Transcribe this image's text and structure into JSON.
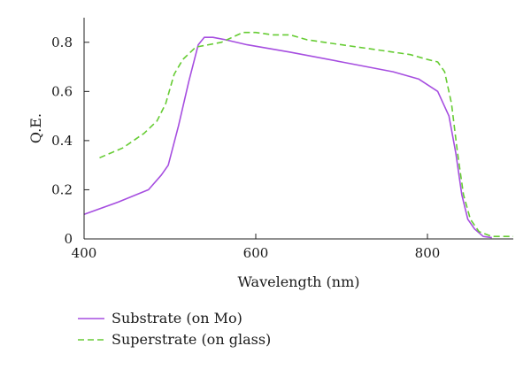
{
  "chart_data": {
    "type": "line",
    "xlabel": "Wavelength (nm)",
    "ylabel": "Q.E.",
    "xlim": [
      400,
      900
    ],
    "ylim": [
      0,
      0.9
    ],
    "xticks": [
      400,
      600,
      800
    ],
    "xtick_labels": [
      "400",
      "600",
      "800"
    ],
    "yticks": [
      0,
      0.2,
      0.4,
      0.6,
      0.8
    ],
    "ytick_labels": [
      "0",
      "0.2",
      "0.4",
      "0.6",
      "0.8"
    ],
    "grid": false,
    "legend": "bottom-left",
    "series": [
      {
        "name": "Substrate (on Mo)",
        "color": "#a64ee0",
        "dash": "solid",
        "x": [
          400,
          440,
          475,
          490,
          498,
          510,
          522,
          533,
          540,
          550,
          565,
          590,
          640,
          700,
          760,
          790,
          812,
          825,
          833,
          840,
          847,
          855,
          865,
          875
        ],
        "y": [
          0.1,
          0.15,
          0.2,
          0.26,
          0.3,
          0.46,
          0.64,
          0.79,
          0.82,
          0.82,
          0.81,
          0.79,
          0.76,
          0.72,
          0.68,
          0.65,
          0.6,
          0.5,
          0.35,
          0.18,
          0.08,
          0.04,
          0.01,
          0.005
        ]
      },
      {
        "name": "Superstrate (on glass)",
        "color": "#66cc33",
        "dash": "dashed",
        "x": [
          418,
          445,
          470,
          485,
          495,
          505,
          515,
          530,
          560,
          585,
          600,
          620,
          640,
          660,
          680,
          700,
          740,
          780,
          800,
          812,
          820,
          828,
          835,
          842,
          850,
          860,
          875,
          900
        ],
        "y": [
          0.33,
          0.37,
          0.43,
          0.48,
          0.55,
          0.67,
          0.73,
          0.78,
          0.8,
          0.84,
          0.84,
          0.83,
          0.83,
          0.81,
          0.8,
          0.79,
          0.77,
          0.75,
          0.73,
          0.72,
          0.68,
          0.55,
          0.35,
          0.18,
          0.08,
          0.03,
          0.01,
          0.01
        ]
      }
    ]
  }
}
